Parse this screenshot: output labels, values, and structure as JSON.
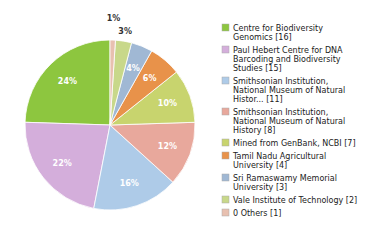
{
  "chart_data": {
    "type": "pie",
    "categories": [
      "Centre for Biodiversity\nGenomics [16]",
      "Paul Hebert Centre for DNA\nBarcoding and Biodiversity\nStudies [15]",
      "Smithsonian Institution,\nNational Museum of Natural\nHistor... [11]",
      "Smithsonian Institution,\nNational Museum of Natural\nHistory [8]",
      "Mined from GenBank, NCBI [7]",
      "Tamil Nadu Agricultural\nUniversity [4]",
      "Sri Ramaswamy Memorial\nUniversity [3]",
      "Vale Institute of Technology [2]",
      "0 Others [1]"
    ],
    "values": [
      24,
      22,
      16,
      12,
      10,
      6,
      4,
      3,
      1
    ],
    "value_labels": [
      "24%",
      "22%",
      "16%",
      "12%",
      "10%",
      "6%",
      "4%",
      "3%",
      "1%"
    ],
    "colors": [
      "#8DC63F",
      "#D4AEDB",
      "#AECBE8",
      "#E8A89C",
      "#C8D46E",
      "#E8924A",
      "#A0B8D4",
      "#C8D88A",
      "#E8C0B0"
    ],
    "data_labels": true,
    "legend": "right"
  }
}
